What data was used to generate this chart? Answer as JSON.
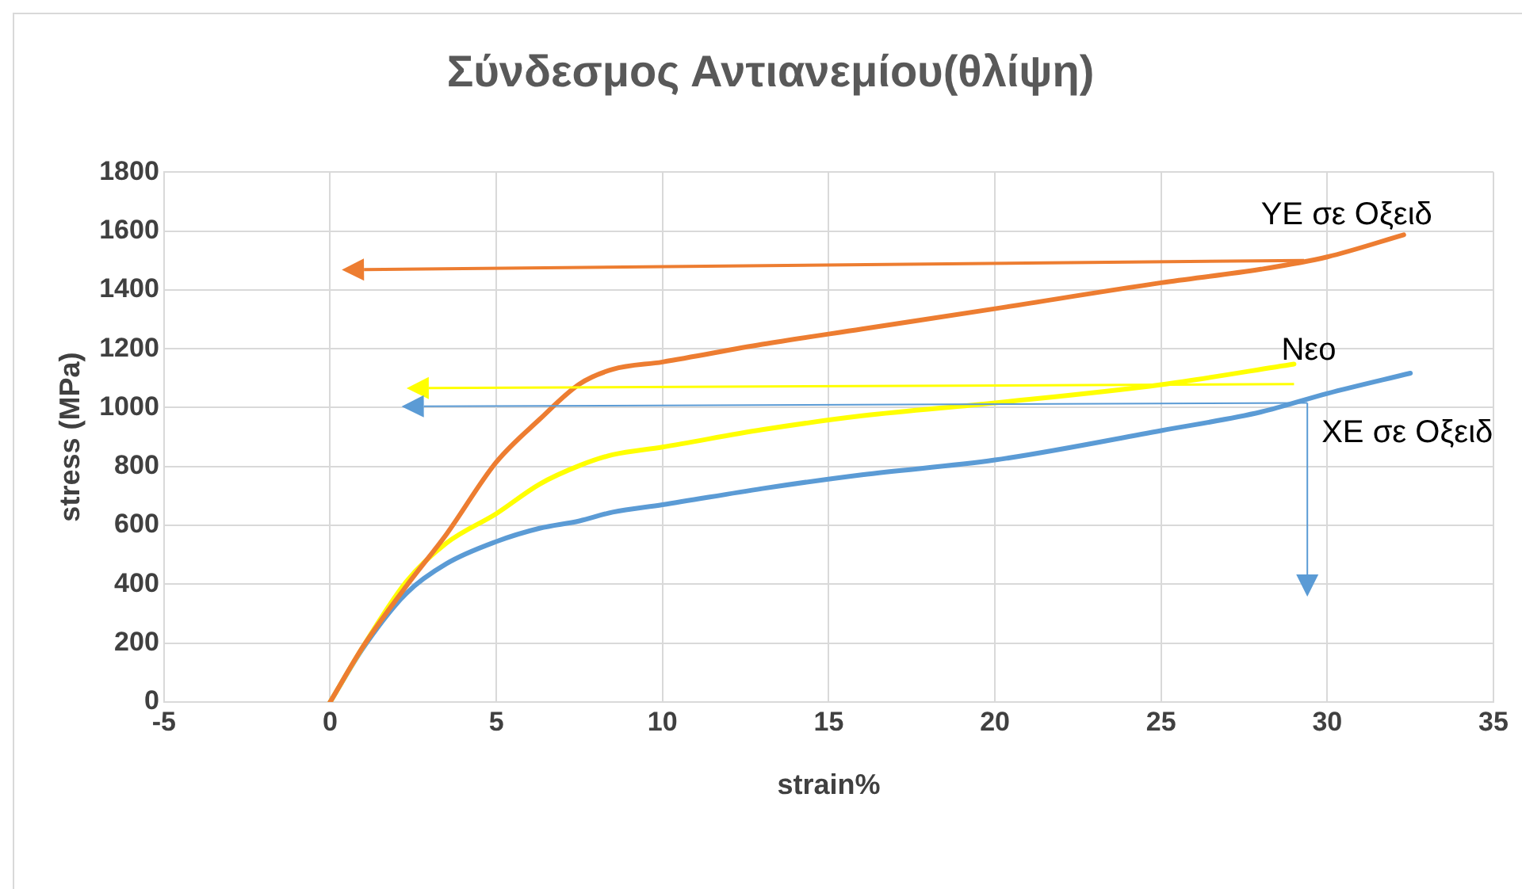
{
  "chart_data": {
    "type": "line",
    "title": "Σύνδεσμος Αντιανεμίου(θλίψη)",
    "xlabel": "strain%",
    "ylabel": "stress (MPa)",
    "xlim": [
      -5,
      35
    ],
    "xticks": [
      -5,
      0,
      5,
      10,
      15,
      20,
      25,
      30,
      35
    ],
    "ylim": [
      0,
      1800
    ],
    "yticks": [
      0,
      200,
      400,
      600,
      800,
      1000,
      1200,
      1400,
      1600,
      1800
    ],
    "grid": true,
    "legend": false,
    "marker": "none",
    "line_style": "solid",
    "series": [
      {
        "name": "ΥΕ σε Οξειδ",
        "color": "#ed7d31",
        "x": [
          0,
          1,
          2.3,
          3.5,
          5,
          6.3,
          7.5,
          8.5,
          10,
          13,
          16,
          20,
          25,
          28,
          30,
          32.3
        ],
        "values": [
          0,
          190,
          395,
          570,
          815,
          960,
          1080,
          1130,
          1155,
          1215,
          1267,
          1336,
          1424,
          1470,
          1512,
          1587
        ]
      },
      {
        "name": "Νεο",
        "color": "#ffff00",
        "x": [
          0,
          1,
          2.3,
          3.5,
          5,
          6.3,
          7.5,
          8.5,
          10,
          13,
          16,
          20,
          25,
          29
        ],
        "values": [
          0,
          190,
          410,
          540,
          640,
          740,
          803,
          840,
          866,
          925,
          972,
          1016,
          1078,
          1148
        ]
      },
      {
        "name": "ΧΕ σε Οξειδ",
        "color": "#5b9bd5",
        "x": [
          0,
          1,
          2.3,
          3.5,
          5,
          6.3,
          7.5,
          8.5,
          10,
          13,
          16,
          20,
          25,
          28,
          30,
          32.5
        ],
        "values": [
          0,
          185,
          370,
          470,
          545,
          590,
          615,
          645,
          670,
          725,
          772,
          822,
          922,
          985,
          1048,
          1117
        ]
      }
    ]
  }
}
